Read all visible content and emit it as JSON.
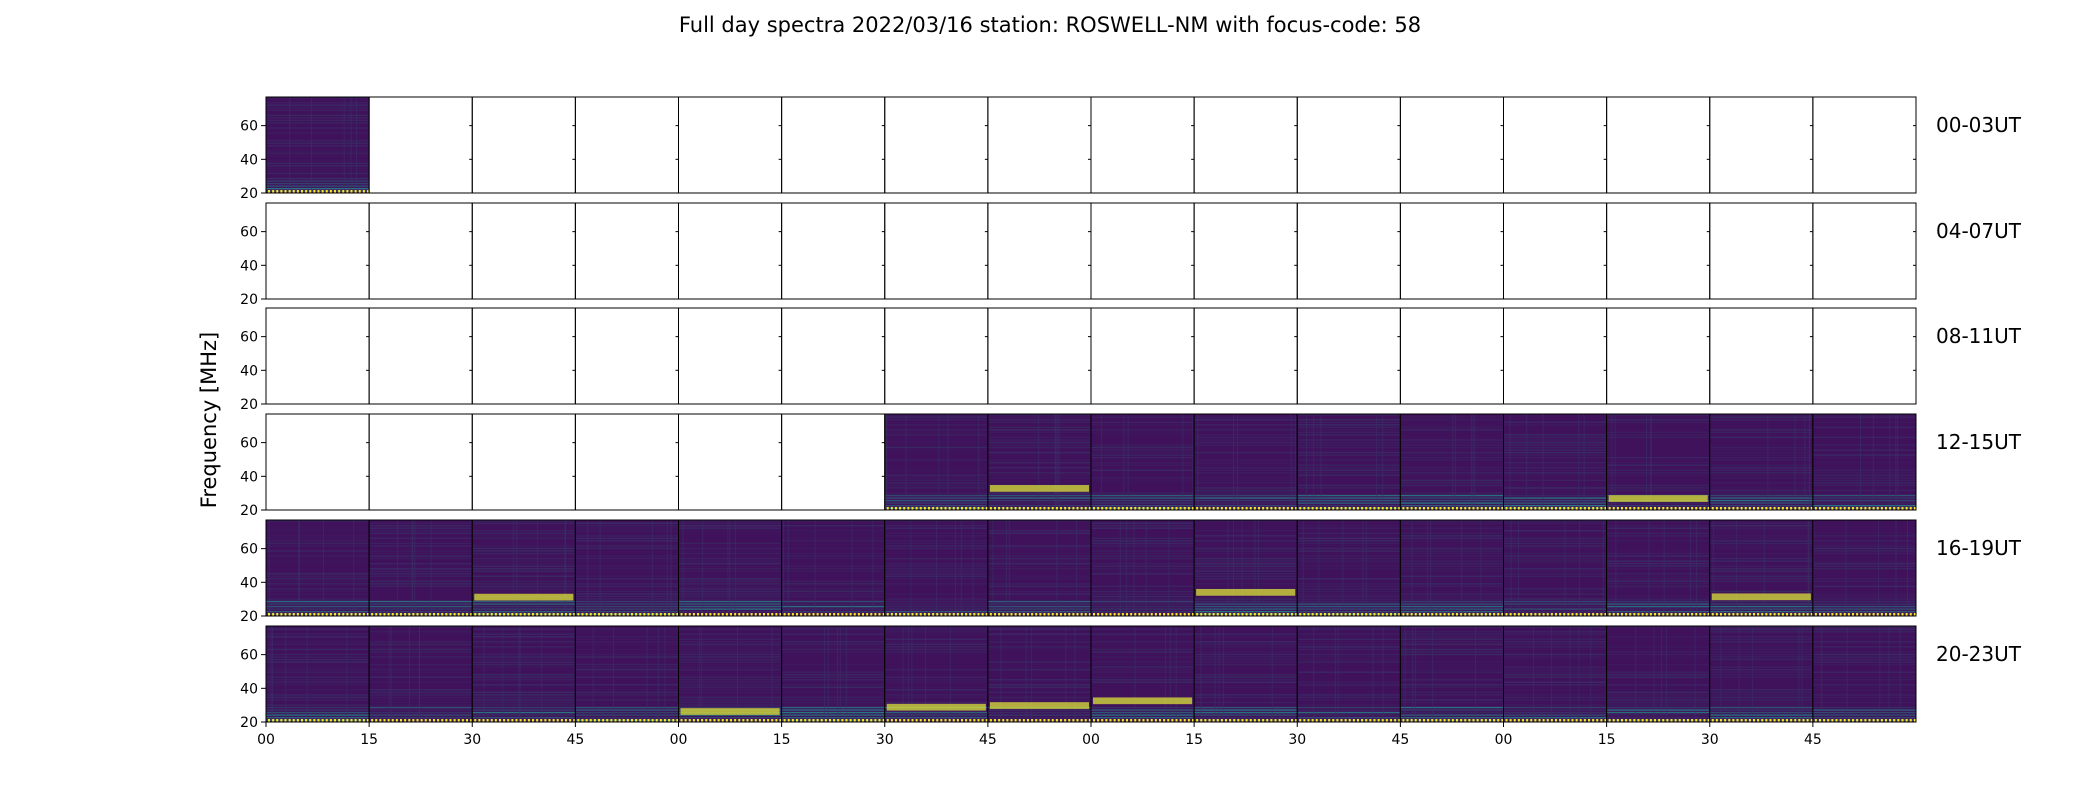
{
  "chart_data": {
    "type": "heatmap",
    "title": "Full day spectra 2022/03/16 station: ROSWELL-NM with focus-code: 58",
    "ylabel": "Frequency [MHz]",
    "ylim": [
      20,
      77
    ],
    "y_ticks": [
      20,
      40,
      60
    ],
    "x_tick_labels": [
      "00",
      "15",
      "30",
      "45",
      "00",
      "15",
      "30",
      "45",
      "00",
      "15",
      "30",
      "45",
      "00",
      "15",
      "30",
      "45"
    ],
    "panels_per_row": 16,
    "rows": [
      {
        "label": "00-03UT",
        "filled": [
          0
        ]
      },
      {
        "label": "04-07UT",
        "filled": []
      },
      {
        "label": "08-11UT",
        "filled": []
      },
      {
        "label": "12-15UT",
        "filled": [
          6,
          7,
          8,
          9,
          10,
          11,
          12,
          13,
          14,
          15
        ]
      },
      {
        "label": "16-19UT",
        "filled": [
          0,
          1,
          2,
          3,
          4,
          5,
          6,
          7,
          8,
          9,
          10,
          11,
          12,
          13,
          14,
          15
        ]
      },
      {
        "label": "20-23UT",
        "filled": [
          0,
          1,
          2,
          3,
          4,
          5,
          6,
          7,
          8,
          9,
          10,
          11,
          12,
          13,
          14,
          15
        ]
      }
    ],
    "colormap": {
      "low": "#440154",
      "mid": "#21918c",
      "high": "#fde725"
    }
  }
}
